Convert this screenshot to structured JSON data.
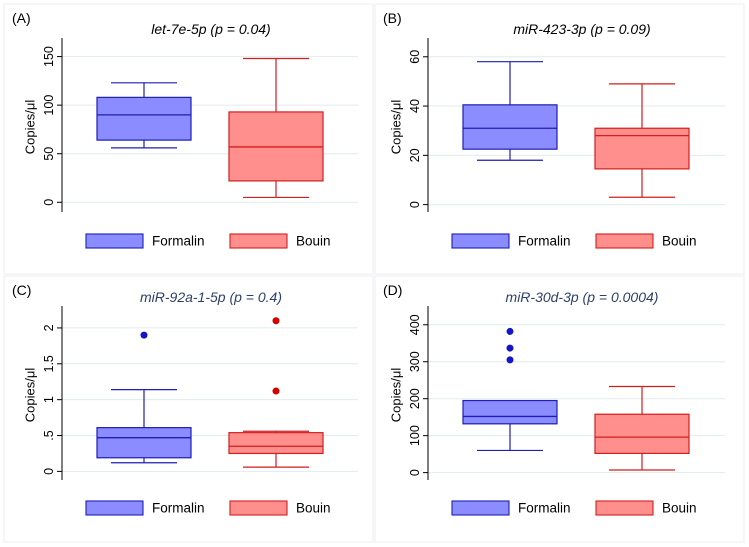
{
  "chart_data": [
    {
      "panel_label": "(A)",
      "type": "box",
      "title": "let-7e-5p (p = 0.04)",
      "title_color": "#000000",
      "ylabel": "Copies/μl",
      "ylim": [
        -10,
        165
      ],
      "yticks": [
        {
          "v": 0,
          "t": "0"
        },
        {
          "v": 50,
          "t": "50"
        },
        {
          "v": 100,
          "t": "100"
        },
        {
          "v": 150,
          "t": "150"
        }
      ],
      "series": [
        {
          "name": "Formalin",
          "whisker_low": 56,
          "q1": 64,
          "median": 90,
          "q3": 108,
          "whisker_high": 123,
          "outliers": []
        },
        {
          "name": "Bouin",
          "whisker_low": 5,
          "q1": 22,
          "median": 57,
          "q3": 93,
          "whisker_high": 148,
          "outliers": []
        }
      ]
    },
    {
      "panel_label": "(B)",
      "type": "box",
      "title": "miR-423-3p  (p = 0.09)",
      "title_color": "#000000",
      "ylabel": "Copies/μl",
      "ylim": [
        -3,
        66
      ],
      "yticks": [
        {
          "v": 0,
          "t": "0"
        },
        {
          "v": 20,
          "t": "20"
        },
        {
          "v": 40,
          "t": "40"
        },
        {
          "v": 60,
          "t": "60"
        }
      ],
      "series": [
        {
          "name": "Formalin",
          "whisker_low": 18,
          "q1": 22.5,
          "median": 31,
          "q3": 40.5,
          "whisker_high": 58,
          "outliers": []
        },
        {
          "name": "Bouin",
          "whisker_low": 3,
          "q1": 14.5,
          "median": 28,
          "q3": 31,
          "whisker_high": 49,
          "outliers": []
        }
      ]
    },
    {
      "panel_label": "(C)",
      "type": "box",
      "title": "miR-92a-1-5p (p = 0.4)",
      "title_color": "#2d3f6a",
      "ylabel": "Copies/μl",
      "ylim": [
        -0.12,
        2.25
      ],
      "yticks": [
        {
          "v": 0,
          "t": "0"
        },
        {
          "v": 0.5,
          "t": ".5"
        },
        {
          "v": 1,
          "t": "1"
        },
        {
          "v": 1.5,
          "t": "1.5"
        },
        {
          "v": 2,
          "t": "2"
        }
      ],
      "series": [
        {
          "name": "Formalin",
          "whisker_low": 0.12,
          "q1": 0.19,
          "median": 0.47,
          "q3": 0.61,
          "whisker_high": 1.14,
          "outliers": [
            1.9
          ]
        },
        {
          "name": "Bouin",
          "whisker_low": 0.06,
          "q1": 0.25,
          "median": 0.35,
          "q3": 0.54,
          "whisker_high": 0.56,
          "outliers": [
            1.12,
            2.1
          ]
        }
      ]
    },
    {
      "panel_label": "(D)",
      "type": "box",
      "title": "miR-30d-3p (p = 0.0004)",
      "title_color": "#2d3f6a",
      "ylabel": "Copies/μl",
      "ylim": [
        -20,
        440
      ],
      "yticks": [
        {
          "v": 0,
          "t": "0"
        },
        {
          "v": 100,
          "t": "100"
        },
        {
          "v": 200,
          "t": "200"
        },
        {
          "v": 300,
          "t": "300"
        },
        {
          "v": 400,
          "t": "400"
        }
      ],
      "series": [
        {
          "name": "Formalin",
          "whisker_low": 60,
          "q1": 132,
          "median": 152,
          "q3": 195,
          "whisker_high": 195,
          "outliers": [
            305,
            337,
            382
          ]
        },
        {
          "name": "Bouin",
          "whisker_low": 7,
          "q1": 52,
          "median": 96,
          "q3": 158,
          "whisker_high": 233,
          "outliers": []
        }
      ]
    }
  ],
  "legend": {
    "items": [
      "Formalin",
      "Bouin"
    ]
  },
  "colors": {
    "formalin_fill": "#8a8cff",
    "formalin_line": "#1e1eb4",
    "formalin_dot": "#1414c8",
    "bouin_fill": "#ff8f8c",
    "bouin_line": "#d21e1e",
    "bouin_dot": "#d40000",
    "grid": "#e1ebee",
    "axis": "#000000"
  }
}
